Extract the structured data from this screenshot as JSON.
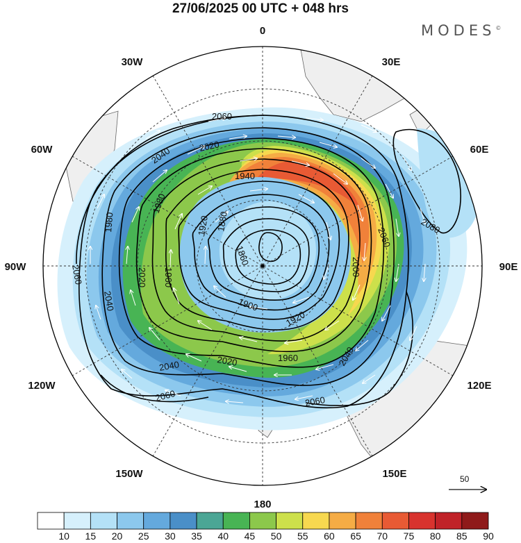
{
  "header": {
    "title": "27/06/2025  00 UTC  + 048 hrs",
    "logo": "MODES"
  },
  "map": {
    "projection": "polar stereographic",
    "longitude_labels": [
      "0",
      "30E",
      "60E",
      "90E",
      "120E",
      "150E",
      "180",
      "150W",
      "120W",
      "90W",
      "60W",
      "30W"
    ],
    "contour_labels": [
      "2060",
      "2040",
      "2020",
      "1940",
      "1980",
      "1920",
      "1880",
      "1860",
      "2060",
      "2080",
      "2000",
      "1960",
      "1980",
      "2040",
      "2020",
      "2060",
      "1900",
      "1920",
      "1960",
      "2040",
      "2060",
      "2020",
      "2040",
      "2060"
    ],
    "colors": {
      "land": "#efefef",
      "coast": "#555555",
      "contour": "#000000",
      "vector": "#ffffff"
    },
    "vector_reference": {
      "value": "50"
    }
  },
  "colorbar": {
    "labels": [
      "10",
      "15",
      "20",
      "25",
      "30",
      "35",
      "40",
      "45",
      "50",
      "55",
      "60",
      "65",
      "70",
      "75",
      "80",
      "85",
      "90"
    ],
    "colors": [
      "#ffffff",
      "#d6f0fc",
      "#b4e1f7",
      "#8cc8ed",
      "#64a9dd",
      "#4a8fc8",
      "#4ba695",
      "#48b454",
      "#8cc84b",
      "#cde04b",
      "#f7d84f",
      "#f5ac45",
      "#f0813a",
      "#e85a34",
      "#d8332e",
      "#c02228",
      "#8f1a1a"
    ]
  }
}
